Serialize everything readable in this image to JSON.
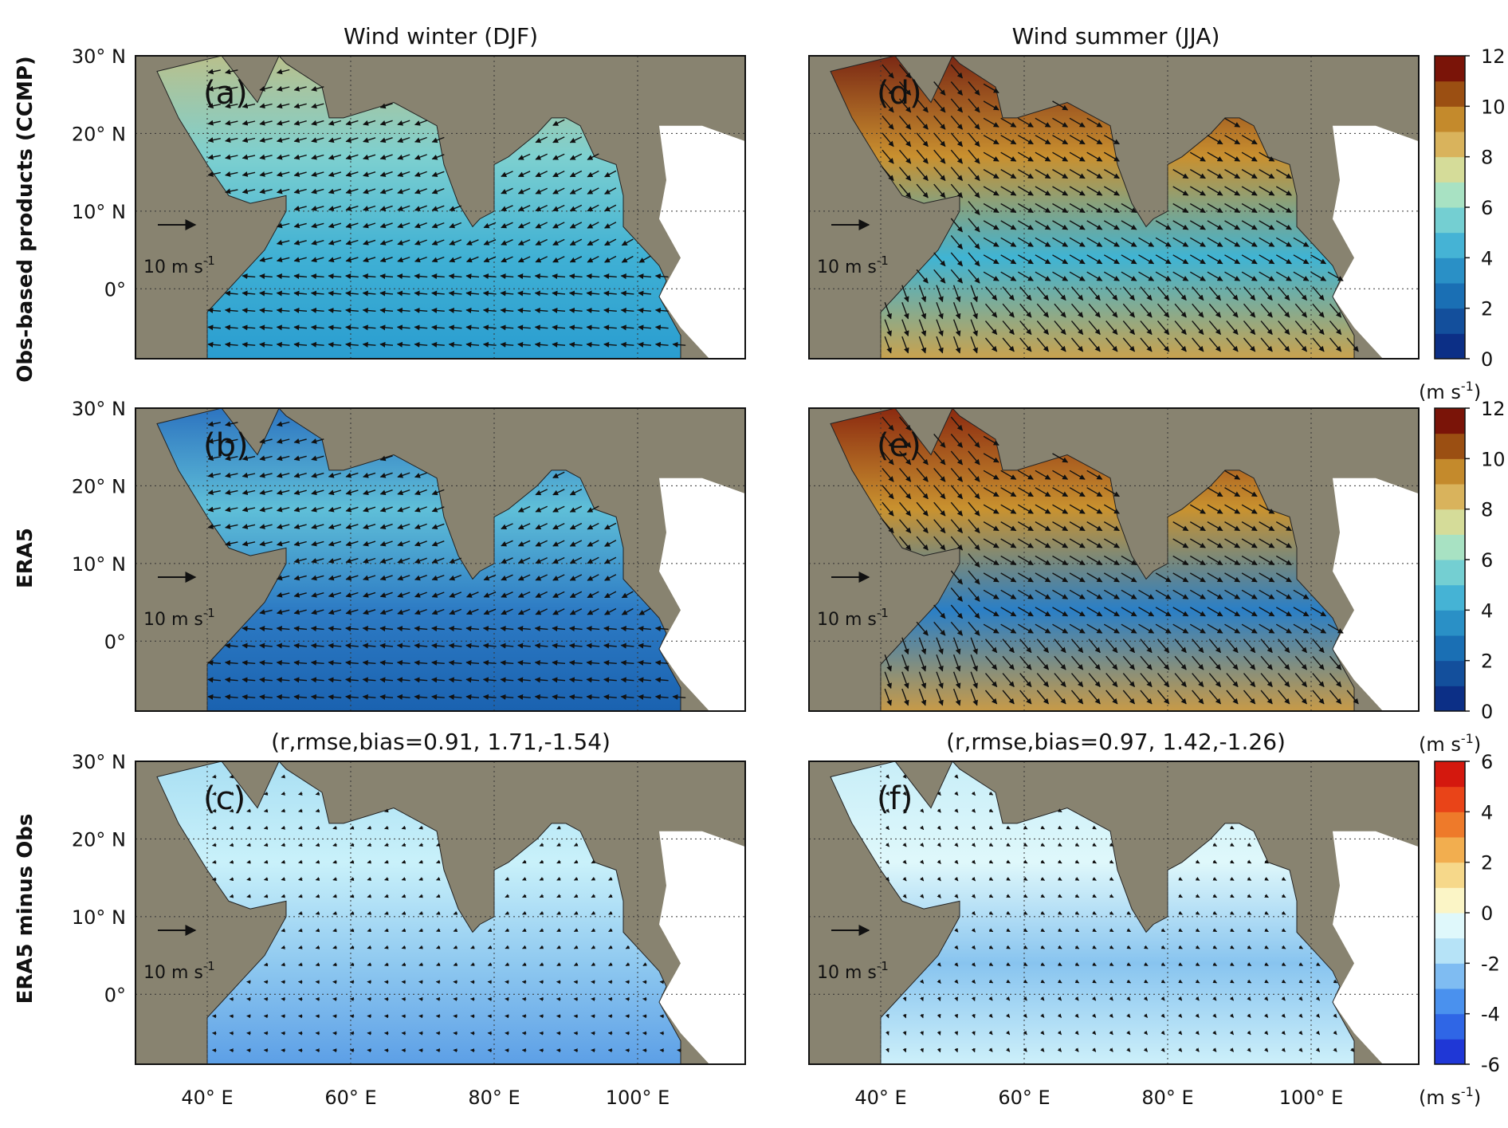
{
  "figure": {
    "row_labels": [
      "Obs-based products (CCMP)",
      "ERA5",
      "ERA5 minus Obs"
    ],
    "col_titles": [
      "Wind winter (DJF)",
      "Wind summer (JJA)"
    ],
    "stats_titles": {
      "c": "(r,rmse,bias=0.91, 1.71,-1.54)",
      "f": "(r,rmse,bias=0.97, 1.42,-1.26)"
    },
    "reference_vector_label": "10 m s",
    "reference_vector_exp": "-1",
    "colorbar_unit_base": "(m s",
    "colorbar_unit_exp": "-1",
    "colorbar_unit_close": ")",
    "colors": {
      "land": "#888370",
      "speed_scale": [
        "#0c2f86",
        "#134f9c",
        "#1a6fb4",
        "#2a90c6",
        "#45b3d5",
        "#74cfd2",
        "#a8e2c3",
        "#d5dc99",
        "#d9b35c",
        "#c48a2c",
        "#9b4f12",
        "#7a1408"
      ],
      "diff_scale": [
        "#1f37d6",
        "#2f66e6",
        "#4a91ee",
        "#7fbcf2",
        "#b6e3f7",
        "#dff8fb",
        "#fbf5c6",
        "#f6d88a",
        "#f2ae4f",
        "#ee7a2a",
        "#e94418",
        "#d4180e"
      ]
    }
  },
  "chart_data": [
    {
      "type": "heatmap",
      "panel": "(a)",
      "title": "Wind winter (DJF)",
      "variable": "wind speed with vectors",
      "xlim": [
        30,
        115
      ],
      "ylim": [
        -9,
        30
      ],
      "xticks": [
        "40° E",
        "60° E",
        "80° E",
        "100° E"
      ],
      "yticks": [
        "30° N",
        "20° N",
        "10° N",
        "0°"
      ],
      "colorbar": {
        "range": [
          0,
          12
        ],
        "ticks": [
          "0",
          "2",
          "4",
          "6",
          "8",
          "10",
          "12"
        ]
      }
    },
    {
      "type": "heatmap",
      "panel": "(b)",
      "title": "",
      "variable": "wind speed with vectors",
      "xlim": [
        30,
        115
      ],
      "ylim": [
        -9,
        30
      ],
      "xticks": [
        "40° E",
        "60° E",
        "80° E",
        "100° E"
      ],
      "yticks": [
        "30° N",
        "20° N",
        "10° N",
        "0°"
      ],
      "colorbar": {
        "range": [
          0,
          12
        ],
        "ticks": [
          "0",
          "2",
          "4",
          "6",
          "8",
          "10",
          "12"
        ]
      }
    },
    {
      "type": "heatmap",
      "panel": "(c)",
      "title": "(r,rmse,bias=0.91, 1.71,-1.54)",
      "variable": "wind speed difference with vectors",
      "stats": {
        "r": 0.91,
        "rmse": 1.71,
        "bias": -1.54
      },
      "xlim": [
        30,
        115
      ],
      "ylim": [
        -9,
        30
      ],
      "xticks": [
        "40° E",
        "60° E",
        "80° E",
        "100° E"
      ],
      "yticks": [
        "30° N",
        "20° N",
        "10° N",
        "0°"
      ],
      "colorbar": {
        "range": [
          -6,
          6
        ],
        "ticks": [
          "-6",
          "-4",
          "-2",
          "0",
          "2",
          "4",
          "6"
        ]
      }
    },
    {
      "type": "heatmap",
      "panel": "(d)",
      "title": "Wind summer (JJA)",
      "variable": "wind speed with vectors",
      "xlim": [
        30,
        115
      ],
      "ylim": [
        -9,
        30
      ],
      "xticks": [
        "40° E",
        "60° E",
        "80° E",
        "100° E"
      ],
      "colorbar": {
        "range": [
          0,
          12
        ],
        "ticks": [
          "0",
          "2",
          "4",
          "6",
          "8",
          "10",
          "12"
        ]
      }
    },
    {
      "type": "heatmap",
      "panel": "(e)",
      "title": "",
      "variable": "wind speed with vectors",
      "xlim": [
        30,
        115
      ],
      "ylim": [
        -9,
        30
      ],
      "xticks": [
        "40° E",
        "60° E",
        "80° E",
        "100° E"
      ],
      "colorbar": {
        "range": [
          0,
          12
        ],
        "ticks": [
          "0",
          "2",
          "4",
          "6",
          "8",
          "10",
          "12"
        ]
      }
    },
    {
      "type": "heatmap",
      "panel": "(f)",
      "title": "(r,rmse,bias=0.97, 1.42,-1.26)",
      "variable": "wind speed difference with vectors",
      "stats": {
        "r": 0.97,
        "rmse": 1.42,
        "bias": -1.26
      },
      "xlim": [
        30,
        115
      ],
      "ylim": [
        -9,
        30
      ],
      "xticks": [
        "40° E",
        "60° E",
        "80° E",
        "100° E"
      ],
      "colorbar": {
        "range": [
          -6,
          6
        ],
        "ticks": [
          "-6",
          "-4",
          "-2",
          "0",
          "2",
          "4",
          "6"
        ]
      }
    }
  ]
}
